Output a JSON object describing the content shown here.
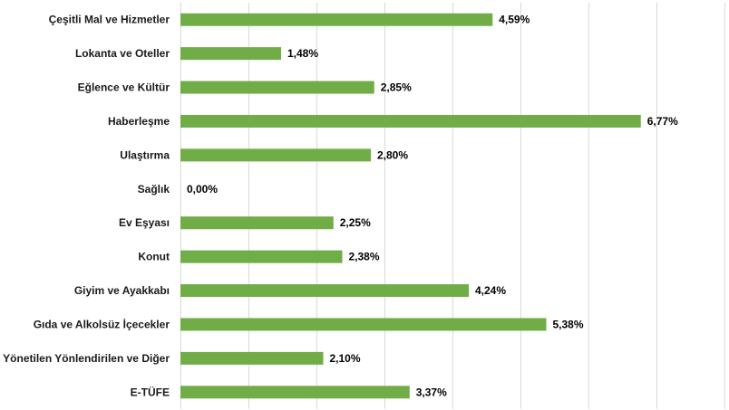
{
  "chart_data": {
    "type": "bar",
    "orientation": "horizontal",
    "categories": [
      "Çeşitli Mal ve Hizmetler",
      "Lokanta ve Oteller",
      "Eğlence ve Kültür",
      "Haberleşme",
      "Ulaştırma",
      "Sağlık",
      "Ev Eşyası",
      "Konut",
      "Giyim ve Ayakkabı",
      "Gıda ve Alkolsüz İçecekler",
      "Yönetilen Yönlendirilen ve Diğer",
      "E-TÜFE"
    ],
    "values": [
      4.59,
      1.48,
      2.85,
      6.77,
      2.8,
      0.0,
      2.25,
      2.38,
      4.24,
      5.38,
      2.1,
      3.37
    ],
    "value_labels": [
      "4,59%",
      "1,48%",
      "2,85%",
      "6,77%",
      "2,80%",
      "0,00%",
      "2,25%",
      "2,38%",
      "4,24%",
      "5,38%",
      "2,10%",
      "3,37%"
    ],
    "xlim": [
      0,
      8
    ],
    "grid": true,
    "legend": "none",
    "bar_color": "#70ad47"
  }
}
